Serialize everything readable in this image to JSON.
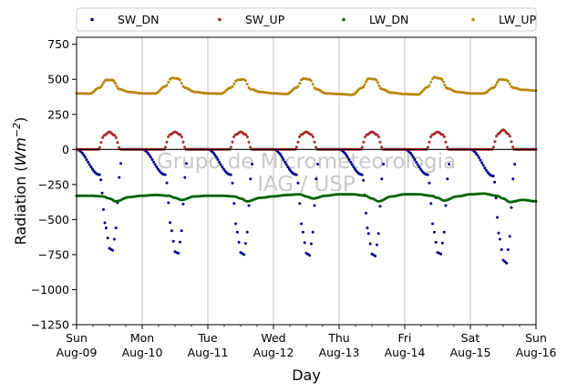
{
  "chart_data": {
    "type": "scatter",
    "xlabel": "Day",
    "ylabel_main": "Radiation (",
    "ylabel_unit": "Wm",
    "ylabel_exp": "−2",
    "ylabel_close": ")",
    "ylim": [
      -1250,
      800
    ],
    "xlim": [
      0,
      7
    ],
    "y_ticks": [
      750,
      500,
      250,
      0,
      -250,
      -500,
      -750,
      -1000,
      -1250
    ],
    "y_tick_labels": [
      "750",
      "500",
      "250",
      "0",
      "−250",
      "−500",
      "−750",
      "−1000",
      "−1250"
    ],
    "x_ticks": [
      0,
      1,
      2,
      3,
      4,
      5,
      6,
      7
    ],
    "x_tick_labels": [
      {
        "day": "Sun",
        "date": "Aug-09"
      },
      {
        "day": "Mon",
        "date": "Aug-10"
      },
      {
        "day": "Tue",
        "date": "Aug-11"
      },
      {
        "day": "Wed",
        "date": "Aug-12"
      },
      {
        "day": "Thu",
        "date": "Aug-13"
      },
      {
        "day": "Fri",
        "date": "Aug-14"
      },
      {
        "day": "Sat",
        "date": "Aug-15"
      },
      {
        "day": "Sun",
        "date": "Aug-16"
      }
    ],
    "grid": "vertical",
    "zero_line": true,
    "legend_placement": "top",
    "watermark": [
      "Grupo de Micrometeorologia",
      "IAG / USP"
    ],
    "series": [
      {
        "name": "SW_DN",
        "color": "#00008b",
        "x": [
          0.0,
          0.35,
          0.45,
          0.5,
          0.55,
          0.6,
          0.65,
          0.7,
          1.0,
          1.35,
          1.45,
          1.5,
          1.55,
          1.6,
          1.65,
          1.7,
          2.0,
          2.35,
          2.45,
          2.5,
          2.55,
          2.6,
          2.65,
          2.7,
          3.0,
          3.35,
          3.45,
          3.5,
          3.55,
          3.6,
          3.65,
          3.7,
          4.0,
          4.35,
          4.45,
          4.5,
          4.55,
          4.6,
          4.65,
          4.7,
          5.0,
          5.35,
          5.45,
          5.5,
          5.55,
          5.6,
          5.65,
          5.7,
          6.0,
          6.35,
          6.45,
          6.5,
          6.55,
          6.6,
          6.65,
          6.7,
          7.0
        ],
        "y": [
          0,
          -180,
          -560,
          -705,
          -720,
          -560,
          -200,
          0,
          0,
          -180,
          -580,
          -730,
          -740,
          -580,
          -200,
          0,
          0,
          -180,
          -590,
          -735,
          -750,
          -590,
          -210,
          0,
          0,
          -180,
          -590,
          -740,
          -755,
          -590,
          -210,
          0,
          0,
          -180,
          -600,
          -745,
          -760,
          -600,
          -210,
          0,
          0,
          -180,
          -590,
          -735,
          -745,
          -590,
          -210,
          0,
          0,
          -190,
          -640,
          -790,
          -810,
          -620,
          -210,
          0,
          0
        ]
      },
      {
        "name": "SW_UP",
        "color": "#a52a2a",
        "x": [
          0.0,
          0.33,
          0.42,
          0.5,
          0.58,
          0.67,
          1.0,
          1.33,
          1.42,
          1.5,
          1.58,
          1.67,
          2.0,
          2.33,
          2.42,
          2.5,
          2.58,
          2.67,
          3.0,
          3.33,
          3.42,
          3.5,
          3.58,
          3.67,
          4.0,
          4.33,
          4.42,
          4.5,
          4.58,
          4.67,
          5.0,
          5.33,
          5.42,
          5.5,
          5.58,
          5.67,
          6.0,
          6.33,
          6.42,
          6.5,
          6.58,
          6.67,
          7.0
        ],
        "y": [
          0,
          0,
          100,
          125,
          100,
          0,
          0,
          0,
          105,
          125,
          105,
          0,
          0,
          0,
          105,
          125,
          105,
          0,
          0,
          0,
          105,
          125,
          105,
          0,
          0,
          0,
          105,
          125,
          105,
          0,
          0,
          0,
          105,
          125,
          105,
          0,
          0,
          0,
          110,
          140,
          110,
          0,
          0
        ]
      },
      {
        "name": "LW_DN",
        "color": "#006400",
        "x": [
          0.0,
          0.2,
          0.4,
          0.5,
          0.6,
          0.8,
          1.0,
          1.2,
          1.4,
          1.5,
          1.6,
          1.8,
          2.0,
          2.2,
          2.4,
          2.5,
          2.6,
          2.8,
          3.0,
          3.2,
          3.4,
          3.5,
          3.6,
          3.8,
          4.0,
          4.2,
          4.4,
          4.5,
          4.6,
          4.8,
          5.0,
          5.2,
          5.4,
          5.5,
          5.6,
          5.8,
          6.0,
          6.2,
          6.4,
          6.5,
          6.6,
          6.8,
          7.0
        ],
        "y": [
          -330,
          -330,
          -335,
          -350,
          -370,
          -340,
          -330,
          -325,
          -330,
          -345,
          -360,
          -335,
          -330,
          -330,
          -335,
          -350,
          -370,
          -345,
          -335,
          -325,
          -320,
          -335,
          -350,
          -330,
          -320,
          -320,
          -330,
          -350,
          -370,
          -335,
          -320,
          -320,
          -330,
          -345,
          -365,
          -335,
          -320,
          -315,
          -330,
          -350,
          -375,
          -360,
          -370
        ]
      },
      {
        "name": "LW_UP",
        "color": "#b8860b",
        "x": [
          0.0,
          0.2,
          0.35,
          0.45,
          0.55,
          0.65,
          0.8,
          1.0,
          1.2,
          1.35,
          1.45,
          1.55,
          1.65,
          1.8,
          2.0,
          2.2,
          2.35,
          2.45,
          2.55,
          2.65,
          2.8,
          3.0,
          3.2,
          3.35,
          3.45,
          3.55,
          3.65,
          3.8,
          4.0,
          4.2,
          4.35,
          4.45,
          4.55,
          4.65,
          4.8,
          5.0,
          5.2,
          5.35,
          5.45,
          5.55,
          5.65,
          5.8,
          6.0,
          6.2,
          6.35,
          6.45,
          6.55,
          6.65,
          6.8,
          7.0
        ],
        "y": [
          400,
          398,
          440,
          495,
          495,
          430,
          410,
          400,
          400,
          450,
          510,
          505,
          440,
          410,
          400,
          398,
          440,
          495,
          500,
          430,
          410,
          400,
          395,
          440,
          505,
          500,
          430,
          400,
          395,
          390,
          440,
          505,
          500,
          430,
          405,
          395,
          392,
          445,
          515,
          505,
          435,
          410,
          400,
          400,
          440,
          500,
          495,
          440,
          425,
          420
        ]
      }
    ]
  }
}
